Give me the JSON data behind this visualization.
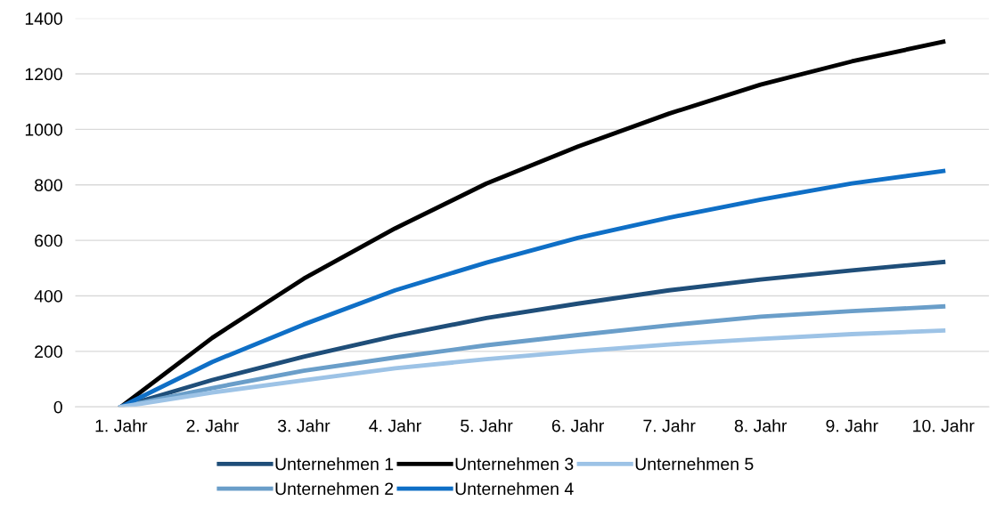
{
  "chart_data": {
    "type": "line",
    "categories": [
      "1. Jahr",
      "2. Jahr",
      "3. Jahr",
      "4. Jahr",
      "5. Jahr",
      "6. Jahr",
      "7. Jahr",
      "8. Jahr",
      "9. Jahr",
      "10. Jahr"
    ],
    "series": [
      {
        "name": "Unternehmen 1",
        "color": "#1f4e79",
        "values": [
          0,
          97,
          181,
          255,
          320,
          372,
          420,
          459,
          492,
          522
        ]
      },
      {
        "name": "Unternehmen 2",
        "color": "#6a9ec9",
        "values": [
          0,
          68,
          130,
          178,
          222,
          259,
          294,
          325,
          345,
          362
        ]
      },
      {
        "name": "Unternehmen 3",
        "color": "#000000",
        "values": [
          0,
          249,
          462,
          643,
          805,
          938,
          1057,
          1161,
          1245,
          1316
        ]
      },
      {
        "name": "Unternehmen 4",
        "color": "#0f6fc6",
        "values": [
          0,
          162,
          297,
          420,
          520,
          609,
          682,
          747,
          805,
          850
        ]
      },
      {
        "name": "Unternehmen 5",
        "color": "#9dc3e6",
        "values": [
          0,
          52,
          96,
          139,
          172,
          200,
          225,
          245,
          262,
          275
        ]
      }
    ],
    "ylim": [
      0,
      1400
    ],
    "yticks": [
      0,
      200,
      400,
      600,
      800,
      1000,
      1200,
      1400
    ],
    "grid": "y",
    "legend": "bottom",
    "marker": "none",
    "line_style": "solid"
  }
}
